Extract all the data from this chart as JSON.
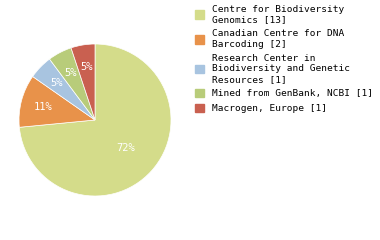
{
  "labels": [
    "Centre for Biodiversity\nGenomics [13]",
    "Canadian Centre for DNA\nBarcoding [2]",
    "Research Center in\nBiodiversity and Genetic\nResources [1]",
    "Mined from GenBank, NCBI [1]",
    "Macrogen, Europe [1]"
  ],
  "values": [
    72,
    11,
    5,
    5,
    5
  ],
  "colors": [
    "#d4dc8a",
    "#e8924a",
    "#a8c4e0",
    "#b8cc7a",
    "#c96050"
  ],
  "pct_colors": [
    "white",
    "white",
    "white",
    "white",
    "white"
  ],
  "autopct_labels": [
    "72%",
    "11%",
    "5%",
    "5%",
    "5%"
  ],
  "background_color": "#ffffff",
  "startangle": 90,
  "font_family": "monospace",
  "font_size": 7.5,
  "legend_font_size": 6.8
}
